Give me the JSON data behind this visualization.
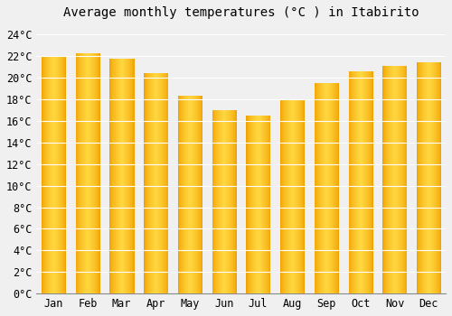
{
  "title": "Average monthly temperatures (°C ) in Itabirito",
  "months": [
    "Jan",
    "Feb",
    "Mar",
    "Apr",
    "May",
    "Jun",
    "Jul",
    "Aug",
    "Sep",
    "Oct",
    "Nov",
    "Dec"
  ],
  "values": [
    22.0,
    22.3,
    21.8,
    20.4,
    18.3,
    17.0,
    16.5,
    17.9,
    19.5,
    20.6,
    21.1,
    21.4
  ],
  "bar_color_edge": "#F0A000",
  "bar_color_center": "#FFD740",
  "ylim": [
    0,
    25
  ],
  "ytick_step": 2,
  "background_color": "#f0f0f0",
  "grid_color": "#ffffff",
  "title_fontsize": 10,
  "tick_fontsize": 8.5,
  "font_family": "monospace",
  "bar_width": 0.7,
  "n_strips": 40
}
